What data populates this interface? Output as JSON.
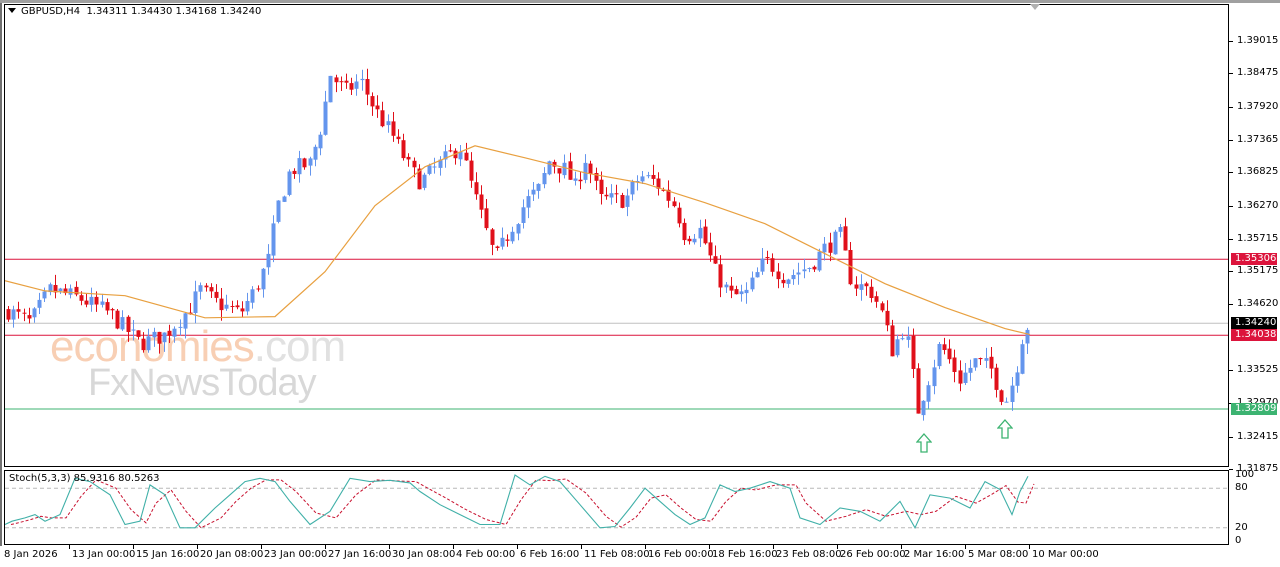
{
  "chart_header": {
    "symbol_timeframe": "GBPUSD,H4",
    "ohlc": "1.34311 1.34430 1.34168 1.34240"
  },
  "indicator_header": {
    "label": "Stoch(5,3,3) 85.9316 80.5263"
  },
  "price_axis": {
    "labels": [
      "1.39015",
      "1.38475",
      "1.37920",
      "1.37365",
      "1.36825",
      "1.36270",
      "1.35715",
      "1.35175",
      "1.34620",
      "1.33525",
      "1.32970",
      "1.32415",
      "1.31875"
    ],
    "tags": [
      {
        "value": "1.35306",
        "color": "#dc143c"
      },
      {
        "value": "1.34240",
        "color": "#000000"
      },
      {
        "value": "1.34038",
        "color": "#dc143c"
      },
      {
        "value": "1.32809",
        "color": "#3cb371"
      }
    ]
  },
  "indicator_axis": {
    "labels": [
      "100",
      "80",
      "20",
      "0"
    ]
  },
  "time_axis": {
    "labels": [
      "8 Jan 2026",
      "13 Jan 00:00",
      "15 Jan 16:00",
      "20 Jan 08:00",
      "23 Jan 00:00",
      "27 Jan 16:00",
      "30 Jan 08:00",
      "4 Feb 00:00",
      "6 Feb 16:00",
      "11 Feb 08:00",
      "16 Feb 00:00",
      "18 Feb 16:00",
      "23 Feb 08:00",
      "26 Feb 00:00",
      "2 Mar 16:00",
      "5 Mar 08:00",
      "10 Mar 00:00"
    ]
  },
  "watermark": {
    "line1_a": "economies",
    "line1_b": ".com",
    "line2": "FxNewsToday"
  },
  "colors": {
    "bull": "#6495ed",
    "bear": "#e0101a",
    "ma": "#e8a040",
    "resistance": "#dc143c",
    "support": "#3cb371",
    "current": "#c0c0c0",
    "stoch_main": "#40b0a8",
    "stoch_signal": "#c8102e"
  },
  "chart_data": {
    "type": "candlestick",
    "title": "GBPUSD,H4",
    "symbol": "GBPUSD",
    "timeframe": "H4",
    "last_ohlc": {
      "open": 1.34311,
      "high": 1.3443,
      "low": 1.34168,
      "close": 1.3424
    },
    "ylim": [
      1.316,
      1.3945
    ],
    "y_ticks": [
      1.39015,
      1.38475,
      1.3792,
      1.37365,
      1.36825,
      1.3627,
      1.35715,
      1.35175,
      1.3462,
      1.33525,
      1.3297,
      1.32415,
      1.31875
    ],
    "x_ticks": [
      "8 Jan 2026",
      "13 Jan 00:00",
      "15 Jan 16:00",
      "20 Jan 08:00",
      "23 Jan 00:00",
      "27 Jan 16:00",
      "30 Jan 08:00",
      "4 Feb 00:00",
      "6 Feb 16:00",
      "11 Feb 08:00",
      "16 Feb 00:00",
      "18 Feb 16:00",
      "23 Feb 08:00",
      "26 Feb 00:00",
      "2 Mar 16:00",
      "5 Mar 08:00",
      "10 Mar 00:00"
    ],
    "horizontal_lines": [
      {
        "label": "resistance",
        "value": 1.35306,
        "color": "#dc143c"
      },
      {
        "label": "current price",
        "value": 1.3424,
        "color": "#c0c0c0"
      },
      {
        "label": "level",
        "value": 1.34038,
        "color": "#dc143c"
      },
      {
        "label": "support",
        "value": 1.32809,
        "color": "#3cb371"
      }
    ],
    "moving_average_points": [
      [
        0,
        1.3495
      ],
      [
        40,
        1.3478
      ],
      [
        120,
        1.347
      ],
      [
        200,
        1.3433
      ],
      [
        270,
        1.3435
      ],
      [
        320,
        1.351
      ],
      [
        370,
        1.362
      ],
      [
        420,
        1.3685
      ],
      [
        470,
        1.372
      ],
      [
        520,
        1.37
      ],
      [
        580,
        1.3675
      ],
      [
        640,
        1.3657
      ],
      [
        700,
        1.3625
      ],
      [
        760,
        1.359
      ],
      [
        820,
        1.354
      ],
      [
        880,
        1.349
      ],
      [
        940,
        1.345
      ],
      [
        1000,
        1.3415
      ],
      [
        1025,
        1.3405
      ]
    ],
    "annotations": [
      {
        "type": "up-arrow",
        "x_label": "2 Mar 16:00",
        "near_value": 1.324,
        "color": "#3cb371"
      },
      {
        "type": "up-arrow",
        "x_label": "5 Mar 08:00",
        "near_value": 1.3255,
        "color": "#3cb371"
      }
    ],
    "indicator": {
      "name": "Stochastic",
      "params": "5,3,3",
      "main": 85.9316,
      "signal": 80.5263,
      "levels": [
        80,
        20
      ],
      "ylim": [
        0,
        100
      ]
    }
  }
}
